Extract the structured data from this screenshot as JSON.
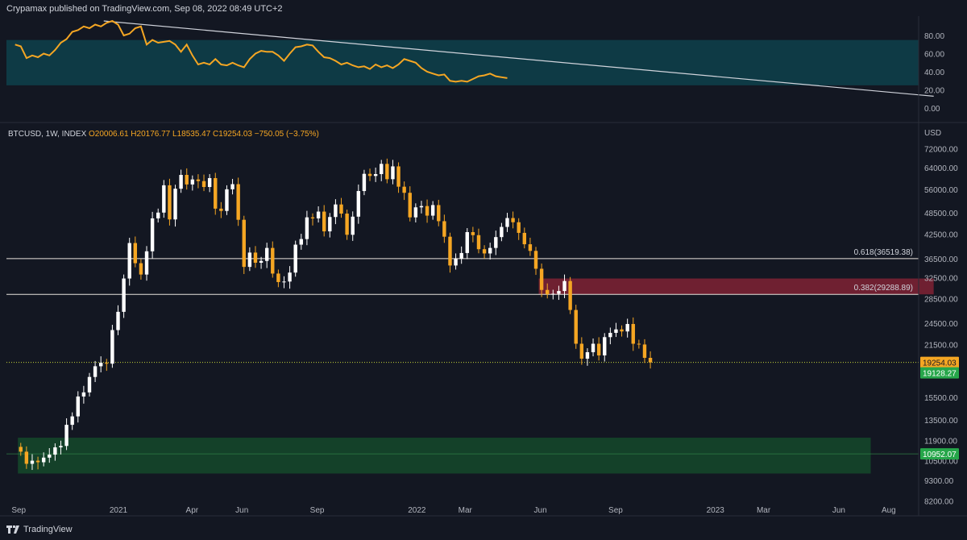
{
  "header": {
    "publish_text": "Crypamax published on TradingView.com, Sep 08, 2022 08:49 UTC+2",
    "symbol": "BTCUSD, 1W, INDEX",
    "ohlc": "O20006.61 H20176.77 L18535.47 C19254.03 −750.05 (−3.75%)"
  },
  "footer": {
    "brand": "TradingView"
  },
  "colors": {
    "background": "#131722",
    "bull": "#ffffff",
    "bear": "#f5a623",
    "rsi_line": "#f5a623",
    "rsi_band": "#0e3a45",
    "supply_zone": "#7a2133",
    "demand_zone": "#15492a"
  },
  "chart_data": [
    {
      "type": "line",
      "panel": "oscillator",
      "y_ticks": [
        "80.00",
        "60.00",
        "40.00",
        "20.00",
        "0.00"
      ],
      "y_tick_values": [
        80,
        60,
        40,
        20,
        0
      ],
      "band": [
        25,
        75
      ],
      "series": [
        {
          "values": [
            70,
            68,
            55,
            58,
            56,
            60,
            58,
            64,
            72,
            76,
            84,
            86,
            90,
            88,
            92,
            90,
            94,
            96,
            92,
            80,
            82,
            88,
            90,
            70,
            75,
            72,
            73,
            74,
            70,
            62,
            70,
            58,
            48,
            50,
            48,
            54,
            48,
            47,
            50,
            47,
            45,
            54,
            60,
            63,
            62,
            62,
            58,
            52,
            60,
            67,
            68,
            70,
            69,
            62,
            56,
            55,
            52,
            48,
            50,
            47,
            45,
            46,
            43,
            48,
            45,
            47,
            44,
            48,
            54,
            52,
            50,
            44,
            40,
            38,
            36,
            37,
            30,
            29,
            30,
            29,
            32,
            35,
            36,
            38,
            35,
            34,
            33
          ]
        }
      ],
      "trendline": {
        "x": [
          "2020-12-14",
          "2023-09-25"
        ],
        "y": [
          96,
          13
        ]
      }
    },
    {
      "type": "candlestick",
      "panel": "price",
      "title": "BTCUSD, 1W, INDEX",
      "y_unit": "USD",
      "y_scale": "log",
      "x_ticks": [
        "Sep",
        "2021",
        "Apr",
        "Jun",
        "Sep",
        "2022",
        "Mar",
        "Jun",
        "Sep",
        "2023",
        "Mar",
        "Jun",
        "Aug"
      ],
      "x_tick_dates": [
        "2020-09-01",
        "2021-01-01",
        "2021-04-01",
        "2021-06-01",
        "2021-09-01",
        "2022-01-01",
        "2022-03-01",
        "2022-06-01",
        "2022-09-01",
        "2023-01-01",
        "2023-03-01",
        "2023-06-01",
        "2023-08-01"
      ],
      "y_ticks": [
        "72000.00",
        "64000.00",
        "56000.00",
        "48500.00",
        "42500.00",
        "36500.00",
        "32500.00",
        "28500.00",
        "24500.00",
        "21500.00",
        "15500.00",
        "13500.00",
        "11900.00",
        "10500.00",
        "9300.00",
        "8200.00"
      ],
      "y_tick_values": [
        72000,
        64000,
        56000,
        48500,
        42500,
        36500,
        32500,
        28500,
        24500,
        21500,
        15500,
        13500,
        11900,
        10500,
        9300,
        8200
      ],
      "first_week": "2020-08-31",
      "close": [
        11100,
        10300,
        10500,
        10400,
        10700,
        10900,
        11400,
        11500,
        13100,
        13800,
        15600,
        16000,
        17600,
        18800,
        19200,
        19100,
        23500,
        26300,
        32300,
        40200,
        35500,
        33100,
        38200,
        46800,
        48500,
        57400,
        46500,
        56200,
        61200,
        57700,
        59500,
        58900,
        56800,
        60000,
        49700,
        49000,
        56000,
        57800,
        46400,
        34700,
        37900,
        35600,
        36000,
        39000,
        33300,
        31600,
        31700,
        33500,
        39800,
        41200,
        47100,
        46800,
        48800,
        43200,
        47200,
        51000,
        48200,
        42300,
        47300,
        55400,
        61600,
        60800,
        61500,
        65500,
        59600,
        64500,
        56900,
        54800,
        47100,
        50100,
        50500,
        47600,
        50800,
        46000,
        41800,
        35000,
        36500,
        37800,
        43000,
        42200,
        38700,
        37700,
        39000,
        41700,
        44400,
        46900,
        45700,
        42800,
        39900,
        38300,
        34300,
        30100,
        29300,
        29400,
        29900,
        31800,
        26600,
        21600,
        19700,
        20500,
        21600,
        20100,
        22500,
        23100,
        23600,
        23300,
        24400,
        21600,
        21500,
        19800,
        19254
      ],
      "current_price": "19254.03",
      "secondary_price": "19128.27",
      "demand_price": "10952.07",
      "levels": [
        {
          "label": "0.618(36519.38)",
          "value": 36519.38
        },
        {
          "label": "0.382(29288.89)",
          "value": 29288.89
        }
      ],
      "zones": [
        {
          "name": "supply",
          "from": "2022-05-30",
          "to": "2023-09-25",
          "low": 29288.89,
          "high": 32300
        },
        {
          "name": "demand",
          "from": "2020-08-31",
          "to": "2023-07-10",
          "low": 9700,
          "high": 12100
        }
      ],
      "current_line_value": 19254.03
    }
  ]
}
